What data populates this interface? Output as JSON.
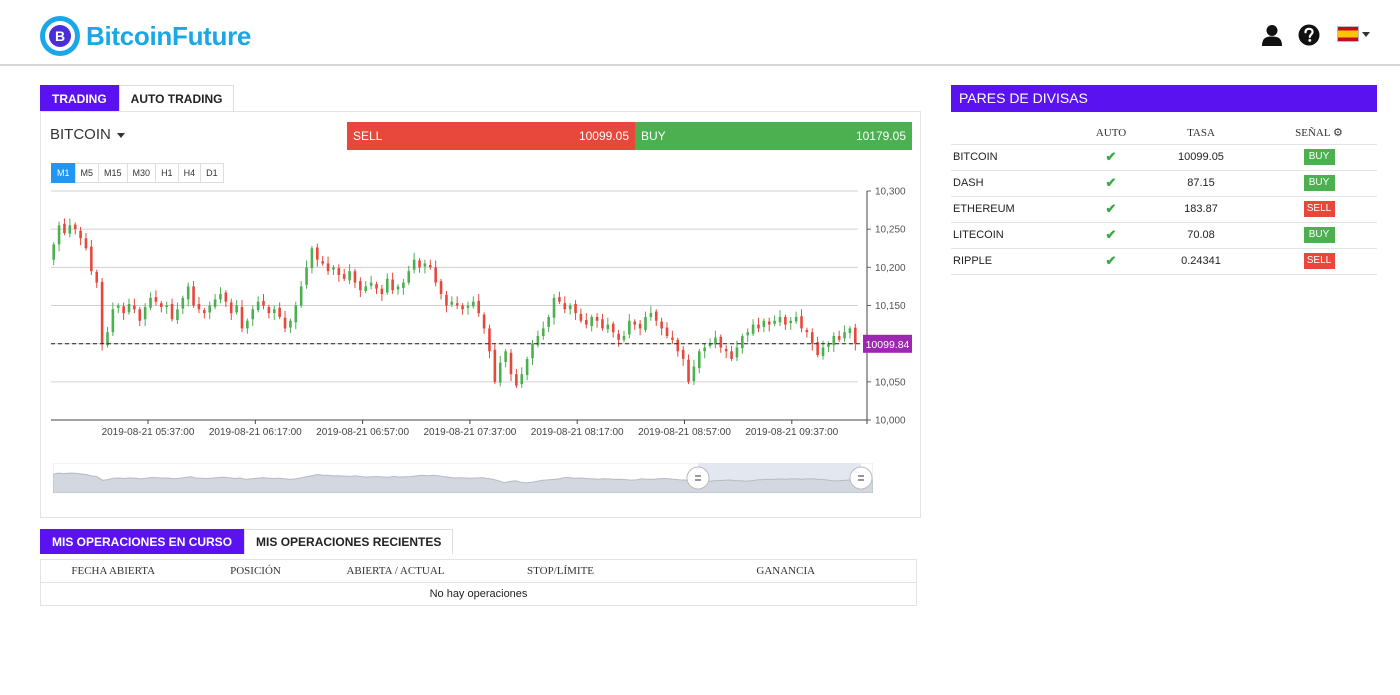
{
  "header": {
    "logo_text": "BitcoinFuture",
    "logo_letter": "B",
    "icons": [
      "user-icon",
      "help-icon",
      "spain-flag-icon",
      "caret-down-icon"
    ]
  },
  "trading_tabs": [
    {
      "label": "TRADING",
      "active": true
    },
    {
      "label": "AUTO TRADING",
      "active": false
    }
  ],
  "instrument": {
    "name": "BITCOIN",
    "sell_label": "SELL",
    "sell_price": "10099.05",
    "buy_label": "BUY",
    "buy_price": "10179.05"
  },
  "timeframes": [
    {
      "label": "M1",
      "active": true
    },
    {
      "label": "M5",
      "active": false
    },
    {
      "label": "M15",
      "active": false
    },
    {
      "label": "M30",
      "active": false
    },
    {
      "label": "H1",
      "active": false
    },
    {
      "label": "H4",
      "active": false
    },
    {
      "label": "D1",
      "active": false
    }
  ],
  "chart_data": {
    "type": "candlestick",
    "y_ticks": [
      "10,300",
      "10,250",
      "10,200",
      "10,150",
      "10,100",
      "10,050",
      "10,000"
    ],
    "x_ticks": [
      "2019-08-21 05:37:00",
      "2019-08-21 06:17:00",
      "2019-08-21 06:57:00",
      "2019-08-21 07:37:00",
      "2019-08-21 08:17:00",
      "2019-08-21 08:57:00",
      "2019-08-21 09:37:00"
    ],
    "current_price_label": "10099.84",
    "current_price": 10099.84,
    "ylim": [
      10000,
      10300
    ],
    "colors": {
      "up": "#4caf50",
      "down": "#e8473c",
      "price_tag": "#9c27b0"
    },
    "close_series": [
      10230,
      10255,
      10245,
      10255,
      10250,
      10238,
      10225,
      10195,
      10180,
      10100,
      10115,
      10145,
      10150,
      10140,
      10152,
      10145,
      10130,
      10148,
      10160,
      10155,
      10148,
      10150,
      10132,
      10145,
      10160,
      10175,
      10150,
      10145,
      10140,
      10150,
      10158,
      10165,
      10155,
      10140,
      10150,
      10120,
      10130,
      10145,
      10155,
      10150,
      10140,
      10145,
      10135,
      10120,
      10130,
      10150,
      10175,
      10200,
      10225,
      10210,
      10205,
      10195,
      10200,
      10190,
      10185,
      10195,
      10180,
      10170,
      10175,
      10180,
      10172,
      10165,
      10185,
      10170,
      10175,
      10180,
      10195,
      10210,
      10200,
      10205,
      10200,
      10180,
      10165,
      10150,
      10155,
      10150,
      10145,
      10150,
      10155,
      10140,
      10120,
      10090,
      10050,
      10075,
      10090,
      10060,
      10045,
      10060,
      10080,
      10100,
      10110,
      10120,
      10135,
      10160,
      10155,
      10145,
      10150,
      10140,
      10130,
      10125,
      10135,
      10130,
      10120,
      10125,
      10115,
      10105,
      10110,
      10130,
      10125,
      10120,
      10135,
      10140,
      10130,
      10120,
      10110,
      10105,
      10090,
      10080,
      10050,
      10070,
      10090,
      10095,
      10100,
      10108,
      10095,
      10090,
      10080,
      10095,
      10110,
      10115,
      10125,
      10120,
      10130,
      10125,
      10130,
      10135,
      10125,
      10130,
      10135,
      10120,
      10115,
      10100,
      10085,
      10095,
      10100,
      10110,
      10105,
      10115,
      10120,
      10100
    ]
  },
  "pairs": {
    "title": "PARES DE DIVISAS",
    "columns": {
      "name": "",
      "auto": "AUTO",
      "rate": "TASA",
      "signal": "SEÑAL"
    },
    "rows": [
      {
        "name": "BITCOIN",
        "rate": "10099.05",
        "signal": "BUY",
        "signal_type": "buy"
      },
      {
        "name": "DASH",
        "rate": "87.15",
        "signal": "BUY",
        "signal_type": "buy"
      },
      {
        "name": "ETHEREUM",
        "rate": "183.87",
        "signal": "SELL",
        "signal_type": "sell"
      },
      {
        "name": "LITECOIN",
        "rate": "70.08",
        "signal": "BUY",
        "signal_type": "buy"
      },
      {
        "name": "RIPPLE",
        "rate": "0.24341",
        "signal": "SELL",
        "signal_type": "sell"
      }
    ]
  },
  "operations_tabs": [
    {
      "label": "MIS OPERACIONES EN CURSO",
      "active": true
    },
    {
      "label": "MIS OPERACIONES RECIENTES",
      "active": false
    }
  ],
  "operations": {
    "columns": [
      "FECHA ABIERTA",
      "POSICIÓN",
      "ABIERTA / ACTUAL",
      "STOP/LÍMITE",
      "GANANCIA"
    ],
    "empty_message": "No hay operaciones"
  }
}
